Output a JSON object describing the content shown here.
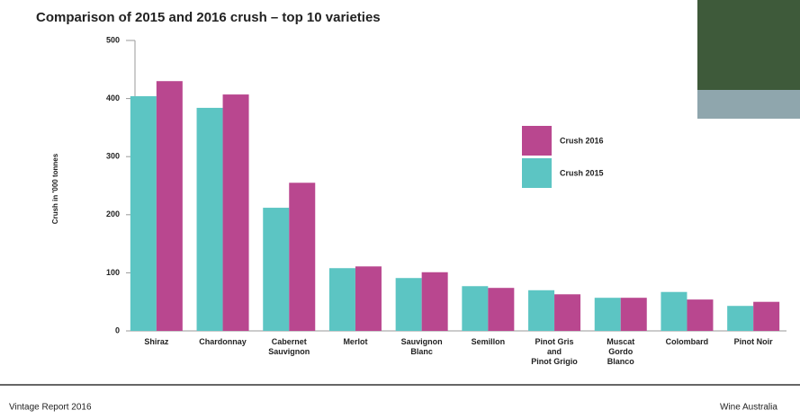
{
  "chart_data": {
    "type": "bar",
    "title": "Comparison of 2015 and 2016 crush – top 10 varieties",
    "y_label": "Crush in '000 tonnes",
    "categories": [
      "Shiraz",
      "Chardonnay",
      "Cabernet\nSauvignon",
      "Merlot",
      "Sauvignon\nBlanc",
      "Semillon",
      "Pinot Gris\nand\nPinot Grigio",
      "Muscat\nGordo\nBlanco",
      "Colombard",
      "Pinot Noir"
    ],
    "series": [
      {
        "name": "Crush 2015",
        "color": "#5cc5c3",
        "values": [
          404,
          384,
          212,
          108,
          91,
          77,
          70,
          57,
          67,
          43
        ]
      },
      {
        "name": "Crush 2016",
        "color": "#b9478f",
        "values": [
          430,
          407,
          255,
          111,
          101,
          74,
          63,
          57,
          54,
          50
        ]
      }
    ],
    "ylim": [
      0,
      500
    ],
    "yticks": [
      0,
      100,
      200,
      300,
      400,
      500
    ],
    "grid": false
  },
  "footer": {
    "left": "Vintage Report 2016",
    "right": "Wine Australia"
  }
}
